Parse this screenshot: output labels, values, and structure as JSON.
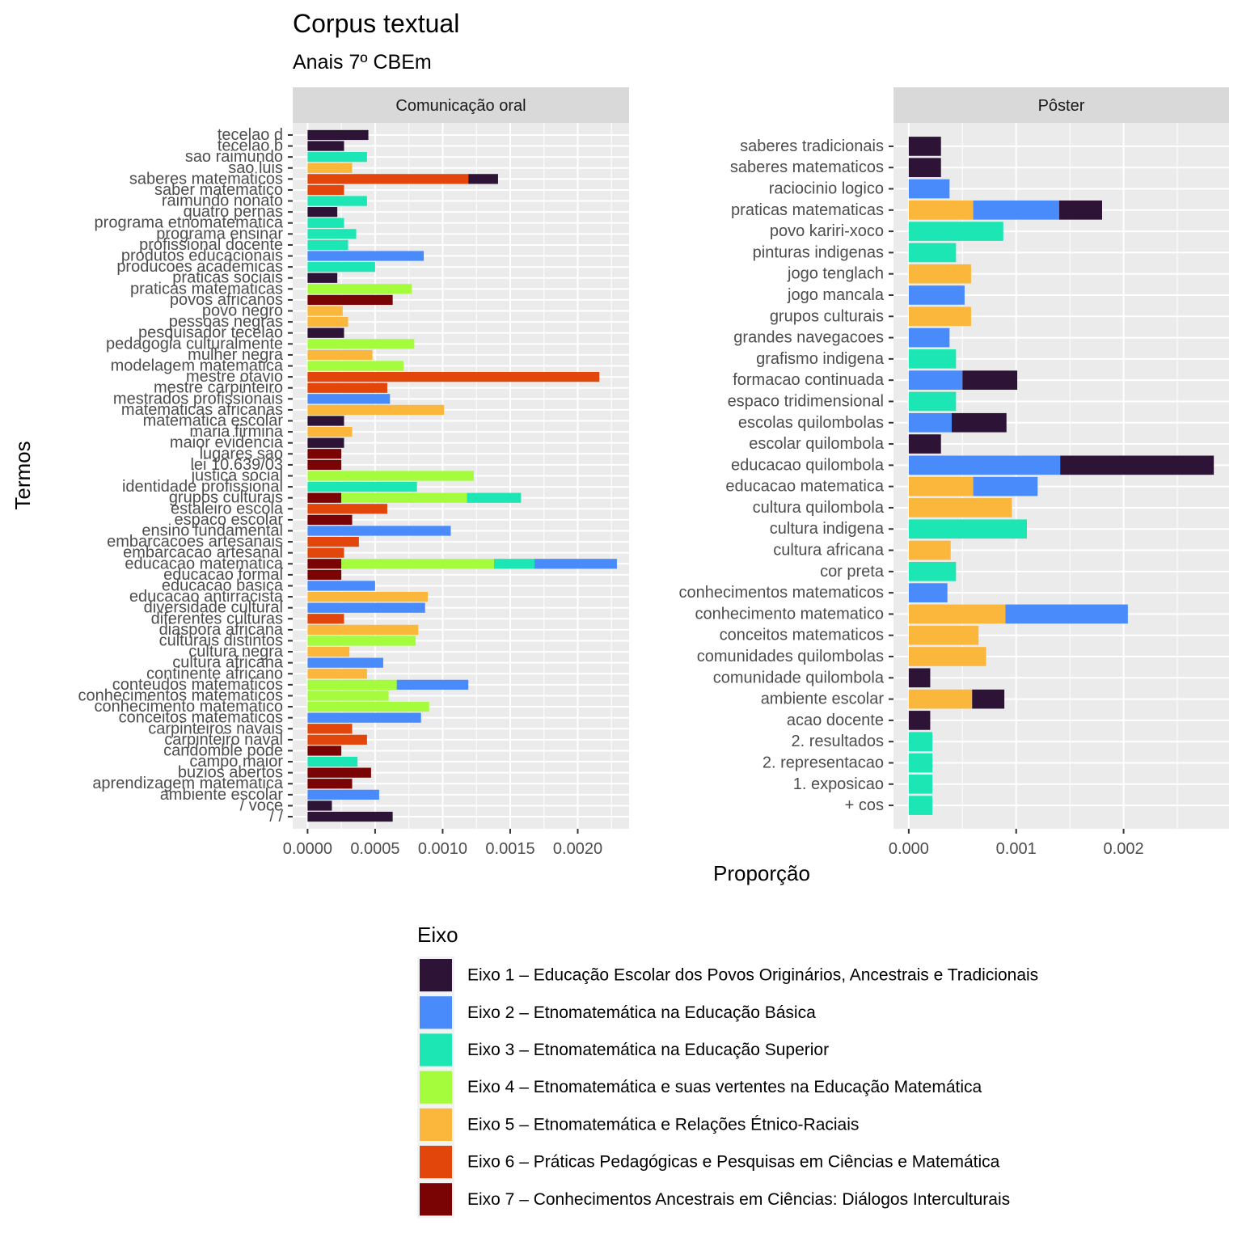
{
  "chart_data": {
    "type": "bar",
    "orientation": "horizontal",
    "stacked": true,
    "title": "Corpus textual",
    "subtitle": "Anais 7º CBEm",
    "xlabel": "Proporção",
    "ylabel": "Termos",
    "grid": true,
    "legend_position": "bottom",
    "legend": {
      "title": "Eixo",
      "entries": [
        {
          "key": "e1",
          "label": "Eixo 1 – Educação Escolar dos Povos Originários, Ancestrais e Tradicionais",
          "color": "#2d1437"
        },
        {
          "key": "e2",
          "label": "Eixo 2 – Etnomatemática na Educação Básica",
          "color": "#4a8bfb"
        },
        {
          "key": "e3",
          "label": "Eixo 3 – Etnomatemática na Educação Superior",
          "color": "#1ce6b4"
        },
        {
          "key": "e4",
          "label": "Eixo 4 – Etnomatemática e suas vertentes na Educação Matemática",
          "color": "#a4fc3c"
        },
        {
          "key": "e5",
          "label": "Eixo 5 – Etnomatemática e Relações Étnico-Raciais",
          "color": "#fab73b"
        },
        {
          "key": "e6",
          "label": "Eixo 6 – Práticas Pedagógicas e Pesquisas em Ciências e Matemática",
          "color": "#e3460b"
        },
        {
          "key": "e7",
          "label": "Eixo 7 – Conhecimentos Ancestrais em Ciências: Diálogos Interculturais",
          "color": "#7a0403"
        }
      ]
    },
    "stack_order": [
      "e7",
      "e6",
      "e5",
      "e4",
      "e3",
      "e2",
      "e1"
    ],
    "facets": [
      {
        "name": "Comunicação oral",
        "xlim": [
          -0.00011,
          0.00238
        ],
        "xticks": [
          0,
          0.0005,
          0.001,
          0.0015,
          0.002
        ],
        "xtick_labels": [
          "0.0000",
          "0.0005",
          "0.0010",
          "0.0015",
          "0.0020"
        ],
        "rows": [
          {
            "term": "tecelao d",
            "values": {
              "e1": 0.00045
            }
          },
          {
            "term": "tecelao b",
            "values": {
              "e1": 0.00027
            }
          },
          {
            "term": "sao raimundo",
            "values": {
              "e3": 0.00044
            }
          },
          {
            "term": "sao luis",
            "values": {
              "e5": 0.00033
            }
          },
          {
            "term": "saberes matematicos",
            "values": {
              "e6": 0.00119,
              "e1": 0.00022
            }
          },
          {
            "term": "saber matematico",
            "values": {
              "e6": 0.00027
            }
          },
          {
            "term": "raimundo nonato",
            "values": {
              "e3": 0.00044
            }
          },
          {
            "term": "quatro pernas",
            "values": {
              "e1": 0.00022
            }
          },
          {
            "term": "programa etnomatematica",
            "values": {
              "e3": 0.00027
            }
          },
          {
            "term": "programa ensinar",
            "values": {
              "e3": 0.00036
            }
          },
          {
            "term": "profissional docente",
            "values": {
              "e3": 0.0003
            }
          },
          {
            "term": "produtos educacionais",
            "values": {
              "e2": 0.00086
            }
          },
          {
            "term": "producoes academicas",
            "values": {
              "e3": 0.0005
            }
          },
          {
            "term": "praticas sociais",
            "values": {
              "e1": 0.00022
            }
          },
          {
            "term": "praticas matematicas",
            "values": {
              "e4": 0.00077
            }
          },
          {
            "term": "povos africanos",
            "values": {
              "e7": 0.00063
            }
          },
          {
            "term": "povo negro",
            "values": {
              "e5": 0.00026
            }
          },
          {
            "term": "pessoas negras",
            "values": {
              "e5": 0.0003
            }
          },
          {
            "term": "pesquisador tecelao",
            "values": {
              "e1": 0.00027
            }
          },
          {
            "term": "pedagogia culturalmente",
            "values": {
              "e4": 0.00079
            }
          },
          {
            "term": "mulher negra",
            "values": {
              "e5": 0.00048
            }
          },
          {
            "term": "modelagem matematica",
            "values": {
              "e4": 0.00071
            }
          },
          {
            "term": "mestre otavio",
            "values": {
              "e6": 0.00216
            }
          },
          {
            "term": "mestre carpinteiro",
            "values": {
              "e6": 0.00059
            }
          },
          {
            "term": "mestrados profissionais",
            "values": {
              "e2": 0.00061
            }
          },
          {
            "term": "matematicas africanas",
            "values": {
              "e5": 0.00101
            }
          },
          {
            "term": "matematica escolar",
            "values": {
              "e1": 0.00027
            }
          },
          {
            "term": "maria firmina",
            "values": {
              "e5": 0.00033
            }
          },
          {
            "term": "maior evidencia",
            "values": {
              "e1": 0.00027
            }
          },
          {
            "term": "lugares sao",
            "values": {
              "e7": 0.00025
            }
          },
          {
            "term": "lei 10.639/03",
            "values": {
              "e7": 0.00025
            }
          },
          {
            "term": "justica social",
            "values": {
              "e4": 0.00123
            }
          },
          {
            "term": "identidade profissional",
            "values": {
              "e3": 0.00081
            }
          },
          {
            "term": "grupos culturais",
            "values": {
              "e7": 0.00025,
              "e4": 0.00093,
              "e3": 0.0004
            }
          },
          {
            "term": "estaleiro escola",
            "values": {
              "e6": 0.00059
            }
          },
          {
            "term": "espaco escolar",
            "values": {
              "e7": 0.00033
            }
          },
          {
            "term": "ensino fundamental",
            "values": {
              "e2": 0.00106
            }
          },
          {
            "term": "embarcacoes artesanais",
            "values": {
              "e6": 0.00038
            }
          },
          {
            "term": "embarcacao artesanal",
            "values": {
              "e6": 0.00027
            }
          },
          {
            "term": "educacao matematica",
            "values": {
              "e7": 0.00025,
              "e4": 0.00113,
              "e3": 0.0003,
              "e2": 0.00061
            }
          },
          {
            "term": "educacao formal",
            "values": {
              "e7": 0.00025
            }
          },
          {
            "term": "educacao basica",
            "values": {
              "e2": 0.0005
            }
          },
          {
            "term": "educacao antirracista",
            "values": {
              "e5": 0.00089
            }
          },
          {
            "term": "diversidade cultural",
            "values": {
              "e2": 0.00087
            }
          },
          {
            "term": "diferentes culturas",
            "values": {
              "e6": 0.00027
            }
          },
          {
            "term": "diaspora africana",
            "values": {
              "e5": 0.00082
            }
          },
          {
            "term": "culturais distintos",
            "values": {
              "e4": 0.0008
            }
          },
          {
            "term": "cultura negra",
            "values": {
              "e5": 0.00031
            }
          },
          {
            "term": "cultura africana",
            "values": {
              "e2": 0.00056
            }
          },
          {
            "term": "continente africano",
            "values": {
              "e5": 0.00044
            }
          },
          {
            "term": "conteudos matematicos",
            "values": {
              "e4": 0.00066,
              "e2": 0.00053
            }
          },
          {
            "term": "conhecimentos matematicos",
            "values": {
              "e4": 0.0006
            }
          },
          {
            "term": "conhecimento matematico",
            "values": {
              "e4": 0.0009
            }
          },
          {
            "term": "conceitos matematicos",
            "values": {
              "e2": 0.00084
            }
          },
          {
            "term": "carpinteiros navais",
            "values": {
              "e6": 0.00033
            }
          },
          {
            "term": "carpinteiro naval",
            "values": {
              "e6": 0.00044
            }
          },
          {
            "term": "candomble pode",
            "values": {
              "e7": 0.00025
            }
          },
          {
            "term": "campo maior",
            "values": {
              "e3": 0.00037
            }
          },
          {
            "term": "buzios abertos",
            "values": {
              "e7": 0.00047
            }
          },
          {
            "term": "aprendizagem matematica",
            "values": {
              "e7": 0.00033
            }
          },
          {
            "term": "ambiente escolar",
            "values": {
              "e2": 0.00053
            }
          },
          {
            "term": "/ voce",
            "values": {
              "e1": 0.00018
            }
          },
          {
            "term": "/ /",
            "values": {
              "e1": 0.00063
            }
          }
        ]
      },
      {
        "name": "Pôster",
        "xlim": [
          -0.000142,
          0.002982
        ],
        "xticks": [
          0,
          0.001,
          0.002
        ],
        "xtick_labels": [
          "0.000",
          "0.001",
          "0.002"
        ],
        "rows": [
          {
            "term": "saberes tradicionais",
            "values": {
              "e1": 0.0003
            }
          },
          {
            "term": "saberes matematicos",
            "values": {
              "e1": 0.0003
            }
          },
          {
            "term": "raciocinio logico",
            "values": {
              "e2": 0.00038
            }
          },
          {
            "term": "praticas matematicas",
            "values": {
              "e5": 0.0006,
              "e2": 0.0008,
              "e1": 0.0004
            }
          },
          {
            "term": "povo kariri-xoco",
            "values": {
              "e3": 0.00088
            }
          },
          {
            "term": "pinturas indigenas",
            "values": {
              "e3": 0.00044
            }
          },
          {
            "term": "jogo tenglach",
            "values": {
              "e5": 0.00058
            }
          },
          {
            "term": "jogo mancala",
            "values": {
              "e2": 0.00052
            }
          },
          {
            "term": "grupos culturais",
            "values": {
              "e5": 0.00058
            }
          },
          {
            "term": "grandes navegacoes",
            "values": {
              "e2": 0.00038
            }
          },
          {
            "term": "grafismo indigena",
            "values": {
              "e3": 0.00044
            }
          },
          {
            "term": "formacao continuada",
            "values": {
              "e2": 0.0005,
              "e1": 0.00051
            }
          },
          {
            "term": "espaco tridimensional",
            "values": {
              "e3": 0.00044
            }
          },
          {
            "term": "escolas quilombolas",
            "values": {
              "e2": 0.0004,
              "e1": 0.00051
            }
          },
          {
            "term": "escolar quilombola",
            "values": {
              "e1": 0.0003
            }
          },
          {
            "term": "educacao quilombola",
            "values": {
              "e2": 0.00141,
              "e1": 0.00143
            }
          },
          {
            "term": "educacao matematica",
            "values": {
              "e5": 0.0006,
              "e2": 0.0006
            }
          },
          {
            "term": "cultura quilombola",
            "values": {
              "e5": 0.00096
            }
          },
          {
            "term": "cultura indigena",
            "values": {
              "e3": 0.0011
            }
          },
          {
            "term": "cultura africana",
            "values": {
              "e5": 0.00039
            }
          },
          {
            "term": "cor preta",
            "values": {
              "e3": 0.00044
            }
          },
          {
            "term": "conhecimentos matematicos",
            "values": {
              "e2": 0.00036
            }
          },
          {
            "term": "conhecimento matematico",
            "values": {
              "e5": 0.0009,
              "e2": 0.00114
            }
          },
          {
            "term": "conceitos matematicos",
            "values": {
              "e5": 0.00065
            }
          },
          {
            "term": "comunidades quilombolas",
            "values": {
              "e5": 0.00072
            }
          },
          {
            "term": "comunidade quilombola",
            "values": {
              "e1": 0.0002
            }
          },
          {
            "term": "ambiente escolar",
            "values": {
              "e5": 0.00059,
              "e1": 0.0003
            }
          },
          {
            "term": "acao docente",
            "values": {
              "e1": 0.0002
            }
          },
          {
            "term": "2. resultados",
            "values": {
              "e3": 0.00022
            }
          },
          {
            "term": "2. representacao",
            "values": {
              "e3": 0.00022
            }
          },
          {
            "term": "1. exposicao",
            "values": {
              "e3": 0.00022
            }
          },
          {
            "term": "+ cos",
            "values": {
              "e3": 0.00022
            }
          }
        ]
      }
    ]
  }
}
